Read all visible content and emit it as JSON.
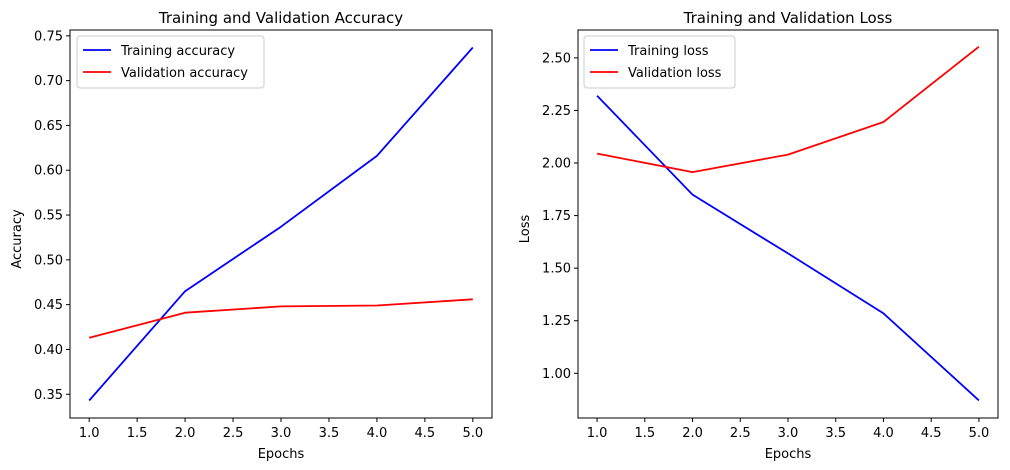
{
  "chart_data": [
    {
      "type": "line",
      "title": "Training and Validation Accuracy",
      "xlabel": "Epochs",
      "ylabel": "Accuracy",
      "x": [
        1,
        2,
        3,
        4,
        5
      ],
      "xlim": [
        0.8,
        5.2
      ],
      "ylim": [
        0.3235,
        0.7565
      ],
      "xticks": [
        "1.0",
        "1.5",
        "2.0",
        "2.5",
        "3.0",
        "3.5",
        "4.0",
        "4.5",
        "5.0"
      ],
      "yticks": [
        "0.35",
        "0.40",
        "0.45",
        "0.50",
        "0.55",
        "0.60",
        "0.65",
        "0.70",
        "0.75"
      ],
      "grid": false,
      "legend": "top-left",
      "series": [
        {
          "name": "Training accuracy",
          "color": "#0000ff",
          "values": [
            0.343,
            0.465,
            0.537,
            0.616,
            0.737
          ]
        },
        {
          "name": "Validation accuracy",
          "color": "#ff0000",
          "values": [
            0.413,
            0.441,
            0.448,
            0.449,
            0.456
          ]
        }
      ]
    },
    {
      "type": "line",
      "title": "Training and Validation Loss",
      "xlabel": "Epochs",
      "ylabel": "Loss",
      "x": [
        1,
        2,
        3,
        4,
        5
      ],
      "xlim": [
        0.8,
        5.2
      ],
      "ylim": [
        0.7875,
        2.6325
      ],
      "xticks": [
        "1.0",
        "1.5",
        "2.0",
        "2.5",
        "3.0",
        "3.5",
        "4.0",
        "4.5",
        "5.0"
      ],
      "yticks": [
        "1.00",
        "1.25",
        "1.50",
        "1.75",
        "2.00",
        "2.25",
        "2.50"
      ],
      "grid": false,
      "legend": "top-left",
      "series": [
        {
          "name": "Training loss",
          "color": "#0000ff",
          "values": [
            2.32,
            1.85,
            1.57,
            1.285,
            0.871
          ]
        },
        {
          "name": "Validation loss",
          "color": "#ff0000",
          "values": [
            2.045,
            1.957,
            2.04,
            2.195,
            2.553
          ]
        }
      ]
    }
  ]
}
